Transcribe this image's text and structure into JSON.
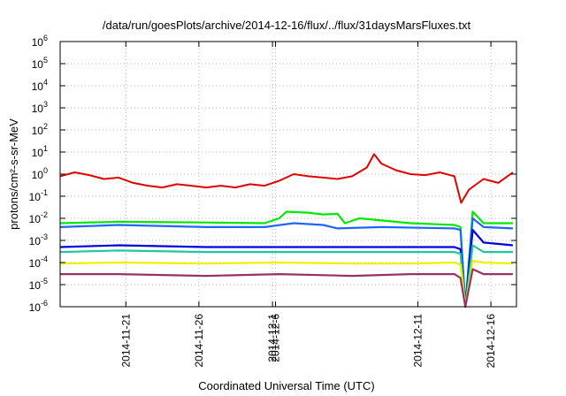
{
  "chart_data": {
    "type": "line",
    "title": "/data/run/goesPlots/archive/2014-12-16/flux/../flux/31daysMarsFluxes.txt",
    "xlabel": "Coordinated Universal Time (UTC)",
    "ylabel": "protons/cm²-s-sr-MeV",
    "yscale": "log",
    "ylim": [
      1e-06,
      1000000.0
    ],
    "xlim": [
      "2014-11-16T12:00",
      "2014-12-17T18:00"
    ],
    "grid": true,
    "legend": "none",
    "yticks": [
      {
        "base": "10",
        "exp": "-6"
      },
      {
        "base": "10",
        "exp": "-5"
      },
      {
        "base": "10",
        "exp": "-4"
      },
      {
        "base": "10",
        "exp": "-3"
      },
      {
        "base": "10",
        "exp": "-2"
      },
      {
        "base": "10",
        "exp": "-1"
      },
      {
        "base": "10",
        "exp": "0"
      },
      {
        "base": "10",
        "exp": "1"
      },
      {
        "base": "10",
        "exp": "2"
      },
      {
        "base": "10",
        "exp": "3"
      },
      {
        "base": "10",
        "exp": "4"
      },
      {
        "base": "10",
        "exp": "5"
      },
      {
        "base": "10",
        "exp": "6"
      }
    ],
    "xticks": [
      "2014-11-21",
      "2014-11-26",
      "2014-12-1",
      "2014-12-6",
      "2014-12-11",
      "2014-12-16"
    ],
    "series": [
      {
        "color": "#e00000",
        "x": [
          "2014-11-16T12:00",
          "2014-11-17T12:00",
          "2014-11-18T12:00",
          "2014-11-19T12:00",
          "2014-11-20T12:00",
          "2014-11-21T12:00",
          "2014-11-22T12:00",
          "2014-11-23T12:00",
          "2014-11-24T12:00",
          "2014-11-25T12:00",
          "2014-11-26T12:00",
          "2014-11-27T12:00",
          "2014-11-28T12:00",
          "2014-11-29T12:00",
          "2014-11-30T12:00",
          "2014-12-01T12:00",
          "2014-12-02T12:00",
          "2014-12-03T12:00",
          "2014-12-04T12:00",
          "2014-12-05T12:00",
          "2014-12-06T12:00",
          "2014-12-07T12:00",
          "2014-12-08T00:00",
          "2014-12-08T12:00",
          "2014-12-09T12:00",
          "2014-12-10T12:00",
          "2014-12-11T12:00",
          "2014-12-12T12:00",
          "2014-12-13T12:00",
          "2014-12-13T23:00",
          "2014-12-14T12:00",
          "2014-12-15T12:00",
          "2014-12-16T12:00",
          "2014-12-17T12:00"
        ],
        "y": [
          0.8,
          1.2,
          0.9,
          0.6,
          0.7,
          0.4,
          0.3,
          0.25,
          0.35,
          0.3,
          0.25,
          0.3,
          0.25,
          0.35,
          0.3,
          0.5,
          1.0,
          0.8,
          0.7,
          0.6,
          0.8,
          2.0,
          8.0,
          3.0,
          1.5,
          1.0,
          0.9,
          1.2,
          0.8,
          0.05,
          0.2,
          0.6,
          0.4,
          1.2
        ]
      },
      {
        "color": "#00e800",
        "x": [
          "2014-11-16T12:00",
          "2014-11-20T12:00",
          "2014-11-26T12:00",
          "2014-11-30T12:00",
          "2014-12-01T12:00",
          "2014-12-02T00:00",
          "2014-12-03T12:00",
          "2014-12-04T12:00",
          "2014-12-05T12:00",
          "2014-12-06T00:00",
          "2014-12-07T00:00",
          "2014-12-10T12:00",
          "2014-12-13T12:00",
          "2014-12-13T22:00",
          "2014-12-14T06:00",
          "2014-12-14T18:00",
          "2014-12-15T12:00",
          "2014-12-17T12:00"
        ],
        "y": [
          0.006,
          0.007,
          0.0065,
          0.006,
          0.01,
          0.02,
          0.018,
          0.015,
          0.016,
          0.006,
          0.01,
          0.006,
          0.005,
          0.004,
          1e-06,
          0.02,
          0.006,
          0.006
        ]
      },
      {
        "color": "#1e64ff",
        "x": [
          "2014-11-16T12:00",
          "2014-11-20T12:00",
          "2014-11-26T12:00",
          "2014-11-30T12:00",
          "2014-12-02T12:00",
          "2014-12-04T12:00",
          "2014-12-05T12:00",
          "2014-12-08T12:00",
          "2014-12-13T12:00",
          "2014-12-13T22:00",
          "2014-12-14T06:00",
          "2014-12-14T18:00",
          "2014-12-15T12:00",
          "2014-12-17T12:00"
        ],
        "y": [
          0.004,
          0.005,
          0.004,
          0.004,
          0.006,
          0.005,
          0.0035,
          0.004,
          0.0035,
          0.003,
          1e-06,
          0.01,
          0.004,
          0.0035
        ]
      },
      {
        "color": "#0000dc",
        "x": [
          "2014-11-16T12:00",
          "2014-11-20T12:00",
          "2014-11-26T12:00",
          "2014-12-01T12:00",
          "2014-12-06T12:00",
          "2014-12-10T12:00",
          "2014-12-13T12:00",
          "2014-12-13T22:00",
          "2014-12-14T06:00",
          "2014-12-14T18:00",
          "2014-12-15T12:00",
          "2014-12-17T12:00"
        ],
        "y": [
          0.0005,
          0.0006,
          0.0005,
          0.0005,
          0.0005,
          0.0005,
          0.0005,
          0.0004,
          1e-06,
          0.003,
          0.0008,
          0.0006
        ]
      },
      {
        "color": "#20c8a0",
        "x": [
          "2014-11-16T12:00",
          "2014-11-20T12:00",
          "2014-11-26T12:00",
          "2014-12-01T12:00",
          "2014-12-06T12:00",
          "2014-12-10T12:00",
          "2014-12-13T12:00",
          "2014-12-13T22:00",
          "2014-12-14T06:00",
          "2014-12-14T18:00",
          "2014-12-15T12:00",
          "2014-12-17T12:00"
        ],
        "y": [
          0.0003,
          0.00035,
          0.0003,
          0.0003,
          0.0003,
          0.0003,
          0.0003,
          0.00025,
          1e-06,
          0.0006,
          0.0003,
          0.0003
        ]
      },
      {
        "color": "#f0f000",
        "x": [
          "2014-11-16T12:00",
          "2014-11-20T12:00",
          "2014-11-26T12:00",
          "2014-12-01T12:00",
          "2014-12-06T12:00",
          "2014-12-10T12:00",
          "2014-12-13T12:00",
          "2014-12-13T22:00",
          "2014-12-14T06:00",
          "2014-12-14T18:00",
          "2014-12-15T12:00",
          "2014-12-17T12:00"
        ],
        "y": [
          9e-05,
          0.0001,
          9e-05,
          0.0001,
          9e-05,
          9e-05,
          0.0001,
          8e-05,
          1e-06,
          0.00012,
          0.0001,
          9e-05
        ]
      },
      {
        "color": "#963264",
        "x": [
          "2014-11-16T12:00",
          "2014-11-20T12:00",
          "2014-11-26T12:00",
          "2014-12-01T12:00",
          "2014-12-06T12:00",
          "2014-12-10T12:00",
          "2014-12-13T12:00",
          "2014-12-13T22:00",
          "2014-12-14T06:00",
          "2014-12-14T18:00",
          "2014-12-15T12:00",
          "2014-12-17T12:00"
        ],
        "y": [
          3e-05,
          3e-05,
          2.5e-05,
          3e-05,
          2.5e-05,
          3e-05,
          3e-05,
          2e-05,
          1e-06,
          5e-05,
          3e-05,
          3e-05
        ]
      }
    ]
  }
}
